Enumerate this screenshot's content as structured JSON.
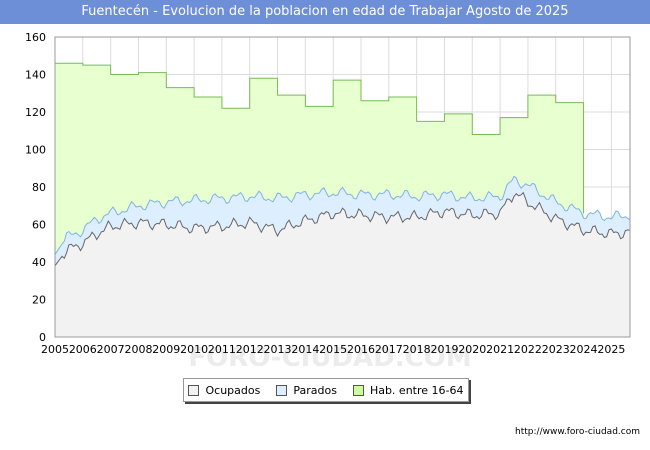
{
  "header": {
    "title": "Fuentecén - Evolucion de la poblacion en edad de Trabajar Agosto de 2025"
  },
  "source": "http://www.foro-ciudad.com",
  "watermark": "FORO-CIUDAD.COM",
  "colors": {
    "title_bg": "#6d8fd8",
    "ocupados_fill": "#f2f2f2",
    "ocupados_line": "#666666",
    "parados_fill": "#ddeeff",
    "parados_line": "#7fb3e6",
    "hab_fill": "#e8ffd0",
    "hab_line": "#77bb55",
    "grid": "#dddddd"
  },
  "legend": [
    {
      "name": "Ocupados",
      "color": "#f2f2f2"
    },
    {
      "name": "Parados",
      "color": "#ddeeff"
    },
    {
      "name": "Hab. entre 16-64",
      "color": "#ccff99"
    }
  ],
  "chart_data": {
    "type": "area",
    "title": "Fuentecén - Evolucion de la poblacion en edad de Trabajar Agosto de 2025",
    "xlabel": "",
    "ylabel": "",
    "x_range": [
      2005,
      2025.67
    ],
    "ylim": [
      0,
      160
    ],
    "yticks": [
      0,
      20,
      40,
      60,
      80,
      100,
      120,
      140,
      160
    ],
    "xticks": [
      2005,
      2006,
      2007,
      2008,
      2009,
      2010,
      2011,
      2012,
      2013,
      2014,
      2015,
      2016,
      2017,
      2018,
      2019,
      2020,
      2021,
      2022,
      2023,
      2024,
      2025
    ],
    "grid": true,
    "legend_position": "bottom",
    "series": [
      {
        "name": "Hab. entre 16-64",
        "step": true,
        "years": [
          2005,
          2006,
          2007,
          2008,
          2009,
          2010,
          2011,
          2012,
          2013,
          2014,
          2015,
          2016,
          2017,
          2018,
          2019,
          2020,
          2021,
          2022,
          2023
        ],
        "values": [
          146,
          145,
          140,
          141,
          133,
          128,
          122,
          138,
          129,
          123,
          137,
          126,
          128,
          115,
          119,
          108,
          117,
          129,
          125
        ]
      },
      {
        "name": "Parados",
        "anchors": [
          [
            2005,
            44
          ],
          [
            2005.4,
            53
          ],
          [
            2006,
            57
          ],
          [
            2006.5,
            63
          ],
          [
            2007,
            66
          ],
          [
            2008,
            70
          ],
          [
            2009,
            72
          ],
          [
            2010,
            73
          ],
          [
            2011,
            74
          ],
          [
            2012,
            75
          ],
          [
            2013,
            74
          ],
          [
            2014,
            76
          ],
          [
            2015,
            77
          ],
          [
            2016,
            76
          ],
          [
            2017,
            76
          ],
          [
            2018,
            75
          ],
          [
            2019,
            76
          ],
          [
            2020,
            74
          ],
          [
            2021,
            75
          ],
          [
            2021.5,
            84
          ],
          [
            2022,
            81
          ],
          [
            2023,
            72
          ],
          [
            2024,
            66
          ],
          [
            2025,
            64
          ],
          [
            2025.67,
            65
          ]
        ]
      },
      {
        "name": "Ocupados",
        "anchors": [
          [
            2005,
            38
          ],
          [
            2005.4,
            46
          ],
          [
            2006,
            50
          ],
          [
            2006.5,
            55
          ],
          [
            2007,
            59
          ],
          [
            2008,
            61
          ],
          [
            2009,
            60
          ],
          [
            2010,
            58
          ],
          [
            2011,
            59
          ],
          [
            2012,
            61
          ],
          [
            2013,
            57
          ],
          [
            2014,
            62
          ],
          [
            2015,
            66
          ],
          [
            2016,
            65
          ],
          [
            2017,
            64
          ],
          [
            2018,
            64
          ],
          [
            2019,
            67
          ],
          [
            2020,
            65
          ],
          [
            2021,
            66
          ],
          [
            2021.5,
            77
          ],
          [
            2022,
            72
          ],
          [
            2023,
            63
          ],
          [
            2024,
            57
          ],
          [
            2025,
            55
          ],
          [
            2025.67,
            56
          ]
        ]
      }
    ]
  }
}
